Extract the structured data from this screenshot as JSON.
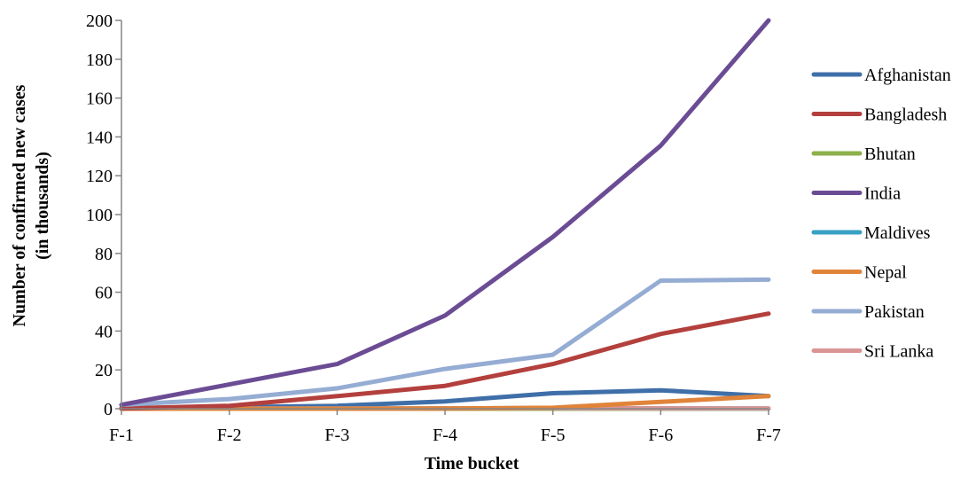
{
  "chart_data": {
    "type": "line",
    "categories": [
      "F-1",
      "F-2",
      "F-3",
      "F-4",
      "F-5",
      "F-6",
      "F-7"
    ],
    "xlabel": "Time bucket",
    "ylabel_lines": [
      "Number of confirmed new cases",
      "(in thousands)"
    ],
    "ylim": [
      0,
      200
    ],
    "yticks": [
      0,
      20,
      40,
      60,
      80,
      100,
      120,
      140,
      160,
      180,
      200
    ],
    "grid": false,
    "legend_position": "right",
    "series": [
      {
        "name": "Afghanistan",
        "color": "#3F6FA8",
        "values": [
          0.3,
          0.8,
          1.5,
          3.8,
          8.0,
          9.5,
          6.5
        ]
      },
      {
        "name": "Bangladesh",
        "color": "#B3403D",
        "values": [
          0.1,
          1.5,
          6.5,
          11.8,
          23.0,
          38.5,
          49.0
        ]
      },
      {
        "name": "Bhutan",
        "color": "#8DB04A",
        "values": [
          0,
          0,
          0,
          0,
          0,
          0,
          0
        ]
      },
      {
        "name": "India",
        "color": "#6B4C94",
        "values": [
          2.0,
          12.5,
          23.0,
          48.0,
          88.5,
          135.5,
          200.0
        ]
      },
      {
        "name": "Maldives",
        "color": "#3AA0C4",
        "values": [
          0,
          0,
          0.1,
          0.2,
          0.3,
          0.2,
          0.1
        ]
      },
      {
        "name": "Nepal",
        "color": "#E0843A",
        "values": [
          0,
          0,
          0,
          0.1,
          0.5,
          3.5,
          6.5
        ]
      },
      {
        "name": "Pakistan",
        "color": "#95ACD3",
        "values": [
          2.0,
          5.0,
          10.5,
          20.5,
          27.8,
          66.0,
          66.5
        ]
      },
      {
        "name": "Sri Lanka",
        "color": "#D99594",
        "values": [
          0.1,
          0.1,
          0.1,
          0.2,
          0.3,
          0.2,
          0.2
        ]
      }
    ]
  }
}
